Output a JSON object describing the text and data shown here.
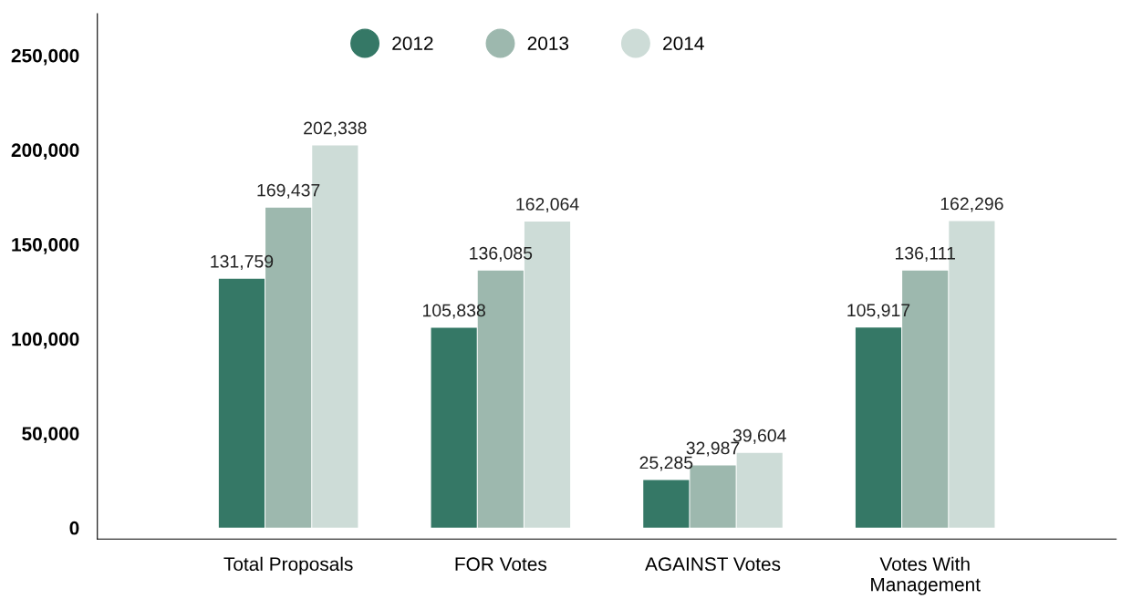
{
  "chart_data": {
    "type": "bar",
    "categories": [
      "Total Proposals",
      "FOR Votes",
      "AGAINST Votes",
      "Votes With\nManagement"
    ],
    "series": [
      {
        "name": "2012",
        "color": "#357866",
        "values": [
          131759,
          105838,
          25285,
          105917
        ],
        "value_labels": [
          "131,759",
          "105,838",
          "25,285",
          "105,917"
        ]
      },
      {
        "name": "2013",
        "color": "#9db8ae",
        "values": [
          169437,
          136085,
          32987,
          136111
        ],
        "value_labels": [
          "169,437",
          "136,085",
          "32,987",
          "136,111"
        ]
      },
      {
        "name": "2014",
        "color": "#cddcd7",
        "values": [
          202338,
          162064,
          39604,
          162296
        ],
        "value_labels": [
          "202,338",
          "162,064",
          "39,604",
          "162,296"
        ]
      }
    ],
    "ylim": [
      -6000,
      272000
    ],
    "yticks": [
      0,
      {
        "value": 50000,
        "label": "50,000"
      },
      {
        "value": 100000,
        "label": "100,000"
      },
      {
        "value": 150000,
        "label": "150,000"
      },
      {
        "value": 200000,
        "label": "200,000"
      },
      {
        "value": 250000,
        "label": "250,000"
      }
    ],
    "grid": false,
    "legend": "top"
  }
}
